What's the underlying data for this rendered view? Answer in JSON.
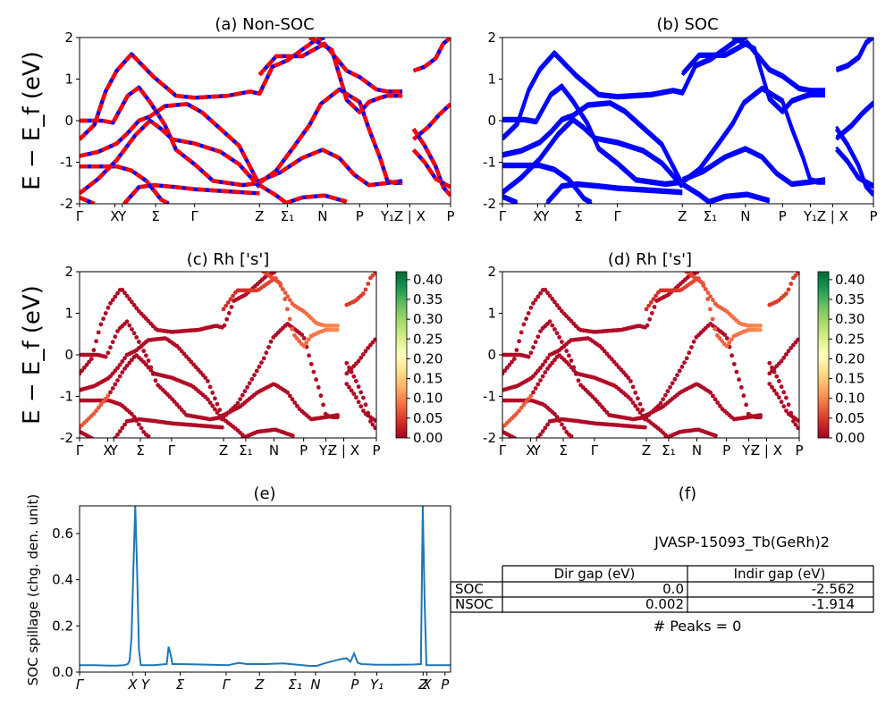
{
  "figure": {
    "ylabel_big": "E − E_f (eV)"
  },
  "chart_data": [
    {
      "id": "a",
      "type": "line",
      "title": "(a) Non-SOC",
      "ylabel": "E − E_f (eV)",
      "ylim": [
        -2,
        2
      ],
      "yticks": [
        -2,
        -1,
        0,
        1,
        2
      ],
      "kpath_ticks": [
        "Γ",
        "X",
        "Y",
        "Σ",
        "Γ",
        "Z",
        "Σ₁",
        "N",
        "P",
        "Y₁",
        "Z | X",
        "P"
      ],
      "kpath_positions": [
        0.0,
        0.095,
        0.115,
        0.205,
        0.31,
        0.485,
        0.56,
        0.655,
        0.755,
        0.83,
        0.89,
        1.0
      ],
      "series_style": "red-blue-dashed",
      "bands": [
        [
          [
            0.0,
            -0.45
          ],
          [
            0.04,
            -0.1
          ],
          [
            0.07,
            0.7
          ],
          [
            0.1,
            1.2
          ],
          [
            0.14,
            1.6
          ],
          [
            0.2,
            1.05
          ],
          [
            0.26,
            0.6
          ],
          [
            0.31,
            0.55
          ],
          [
            0.4,
            0.6
          ],
          [
            0.46,
            0.7
          ],
          [
            0.485,
            0.65
          ],
          [
            0.52,
            1.3
          ],
          [
            0.56,
            1.45
          ],
          [
            0.63,
            1.9
          ],
          [
            0.66,
            2.0
          ]
        ],
        [
          [
            0.0,
            0.0
          ],
          [
            0.06,
            0.0
          ],
          [
            0.09,
            -0.05
          ],
          [
            0.13,
            0.6
          ],
          [
            0.16,
            0.8
          ],
          [
            0.19,
            0.45
          ],
          [
            0.23,
            -0.1
          ],
          [
            0.26,
            -0.7
          ],
          [
            0.31,
            -1.05
          ],
          [
            0.36,
            -1.45
          ],
          [
            0.44,
            -1.55
          ],
          [
            0.485,
            -1.5
          ]
        ],
        [
          [
            0.0,
            -0.85
          ],
          [
            0.05,
            -0.75
          ],
          [
            0.1,
            -0.55
          ],
          [
            0.13,
            -0.3
          ],
          [
            0.16,
            0.0
          ],
          [
            0.19,
            0.1
          ],
          [
            0.23,
            0.35
          ],
          [
            0.29,
            0.4
          ],
          [
            0.33,
            0.2
          ],
          [
            0.38,
            -0.2
          ],
          [
            0.43,
            -0.6
          ],
          [
            0.485,
            -1.55
          ]
        ],
        [
          [
            0.0,
            -1.1
          ],
          [
            0.1,
            -1.1
          ],
          [
            0.14,
            -1.2
          ],
          [
            0.18,
            -1.45
          ],
          [
            0.22,
            -1.9
          ],
          [
            0.24,
            -2.0
          ]
        ],
        [
          [
            0.0,
            -1.75
          ],
          [
            0.05,
            -1.4
          ],
          [
            0.1,
            -0.95
          ],
          [
            0.15,
            -0.35
          ],
          [
            0.19,
            0.0
          ],
          [
            0.22,
            -0.2
          ],
          [
            0.25,
            -0.45
          ],
          [
            0.31,
            -0.55
          ],
          [
            0.38,
            -0.75
          ],
          [
            0.43,
            -1.05
          ],
          [
            0.485,
            -1.6
          ]
        ],
        [
          [
            0.0,
            -1.85
          ],
          [
            0.04,
            -2.0
          ]
        ],
        [
          [
            0.12,
            -2.0
          ],
          [
            0.16,
            -1.6
          ],
          [
            0.2,
            -1.55
          ],
          [
            0.26,
            -1.6
          ],
          [
            0.31,
            -1.65
          ],
          [
            0.4,
            -1.7
          ],
          [
            0.485,
            -1.75
          ]
        ],
        [
          [
            0.485,
            -1.5
          ],
          [
            0.53,
            -1.2
          ],
          [
            0.58,
            -0.6
          ],
          [
            0.62,
            -0.1
          ],
          [
            0.65,
            0.4
          ],
          [
            0.7,
            0.75
          ],
          [
            0.755,
            0.45
          ],
          [
            0.78,
            -0.2
          ],
          [
            0.81,
            -0.9
          ],
          [
            0.83,
            -1.45
          ],
          [
            0.85,
            -1.5
          ],
          [
            0.87,
            -1.5
          ]
        ],
        [
          [
            0.485,
            -1.55
          ],
          [
            0.53,
            -1.8
          ],
          [
            0.56,
            -2.0
          ]
        ],
        [
          [
            0.485,
            -1.45
          ],
          [
            0.54,
            -1.25
          ],
          [
            0.6,
            -0.9
          ],
          [
            0.655,
            -0.7
          ],
          [
            0.7,
            -0.9
          ],
          [
            0.74,
            -1.3
          ],
          [
            0.78,
            -1.55
          ],
          [
            0.83,
            -1.5
          ],
          [
            0.87,
            -1.45
          ]
        ],
        [
          [
            0.485,
            1.1
          ],
          [
            0.53,
            1.55
          ],
          [
            0.6,
            1.55
          ],
          [
            0.66,
            1.85
          ],
          [
            0.72,
            1.2
          ],
          [
            0.755,
            1.05
          ],
          [
            0.8,
            0.75
          ],
          [
            0.83,
            0.7
          ],
          [
            0.87,
            0.7
          ]
        ],
        [
          [
            0.62,
            2.0
          ],
          [
            0.68,
            1.7
          ],
          [
            0.72,
            0.5
          ],
          [
            0.755,
            0.2
          ],
          [
            0.78,
            0.45
          ],
          [
            0.81,
            0.55
          ],
          [
            0.83,
            0.6
          ],
          [
            0.87,
            0.6
          ]
        ],
        [
          [
            0.55,
            -2.0
          ],
          [
            0.6,
            -1.85
          ],
          [
            0.66,
            -1.8
          ],
          [
            0.72,
            -1.95
          ]
        ],
        [
          [
            0.9,
            1.2
          ],
          [
            0.93,
            1.3
          ],
          [
            0.96,
            1.5
          ],
          [
            0.98,
            1.85
          ],
          [
            1.0,
            2.0
          ]
        ],
        [
          [
            0.9,
            -0.45
          ],
          [
            0.94,
            -0.15
          ],
          [
            0.97,
            0.15
          ],
          [
            1.0,
            0.4
          ]
        ],
        [
          [
            0.9,
            -0.2
          ],
          [
            0.93,
            -0.6
          ],
          [
            0.96,
            -1.1
          ],
          [
            0.98,
            -1.6
          ],
          [
            1.0,
            -1.8
          ]
        ],
        [
          [
            0.9,
            -0.7
          ],
          [
            0.93,
            -1.0
          ],
          [
            0.96,
            -1.4
          ],
          [
            1.0,
            -1.6
          ]
        ]
      ]
    },
    {
      "id": "b",
      "type": "line",
      "title": "(b) SOC",
      "ylim": [
        -2,
        2
      ],
      "yticks": [
        -2,
        -1,
        0,
        1,
        2
      ],
      "kpath_ticks": [
        "Γ",
        "X",
        "Y",
        "Σ",
        "Γ",
        "Z",
        "Σ₁",
        "N",
        "P",
        "Y₁",
        "Z | X",
        "P"
      ],
      "kpath_positions": [
        0.0,
        0.095,
        0.115,
        0.205,
        0.31,
        0.485,
        0.56,
        0.655,
        0.755,
        0.83,
        0.89,
        1.0
      ],
      "series_style": "blue"
    },
    {
      "id": "c",
      "type": "scatter",
      "title": "(c)  Rh ['s']",
      "ylabel": "E − E_f (eV)",
      "ylim": [
        -2,
        2
      ],
      "yticks": [
        -2,
        -1,
        0,
        1,
        2
      ],
      "kpath_ticks": [
        "Γ",
        "X",
        "Y",
        "Σ",
        "Γ",
        "Z",
        "Σ₁",
        "N",
        "P",
        "Y₁",
        "Z | X",
        "P"
      ],
      "kpath_positions": [
        0.0,
        0.095,
        0.115,
        0.205,
        0.31,
        0.485,
        0.56,
        0.655,
        0.755,
        0.83,
        0.89,
        1.0
      ],
      "colorbar": {
        "min": 0.0,
        "max": 0.42,
        "ticks": [
          "0.00",
          "0.05",
          "0.10",
          "0.15",
          "0.20",
          "0.25",
          "0.30",
          "0.35",
          "0.40"
        ],
        "cmap": "RdYlGn"
      }
    },
    {
      "id": "d",
      "type": "scatter",
      "title": "(d) Rh ['s']",
      "ylim": [
        -2,
        2
      ],
      "yticks": [
        -2,
        -1,
        0,
        1,
        2
      ],
      "kpath_ticks": [
        "Γ",
        "X",
        "Y",
        "Σ",
        "Γ",
        "Z",
        "Σ₁",
        "N",
        "P",
        "Y₁",
        "Z | X",
        "P"
      ],
      "kpath_positions": [
        0.0,
        0.095,
        0.115,
        0.205,
        0.31,
        0.485,
        0.56,
        0.655,
        0.755,
        0.83,
        0.89,
        1.0
      ],
      "colorbar": {
        "min": 0.0,
        "max": 0.42,
        "ticks": [
          "0.00",
          "0.05",
          "0.10",
          "0.15",
          "0.20",
          "0.25",
          "0.30",
          "0.35",
          "0.40"
        ],
        "cmap": "RdYlGn"
      }
    },
    {
      "id": "e",
      "type": "line",
      "title": "(e)",
      "ylabel": "SOC spillage (chg. den. unit)",
      "ylim": [
        0,
        0.72
      ],
      "yticks": [
        0.0,
        0.2,
        0.4,
        0.6
      ],
      "xlim": [
        0,
        1
      ],
      "kpath_ticks": [
        "Γ",
        "X",
        "Y",
        "Σ",
        "Γ",
        "Z",
        "Σ₁",
        "N",
        "P",
        "Y₁",
        "Z",
        "X",
        "P"
      ],
      "kpath_positions": [
        0.0,
        0.143,
        0.177,
        0.271,
        0.395,
        0.485,
        0.581,
        0.636,
        0.742,
        0.801,
        0.926,
        0.936,
        0.985
      ],
      "x": [
        0.0,
        0.04,
        0.08,
        0.1,
        0.12,
        0.13,
        0.135,
        0.14,
        0.145,
        0.15,
        0.155,
        0.16,
        0.165,
        0.2,
        0.235,
        0.24,
        0.245,
        0.25,
        0.26,
        0.3,
        0.35,
        0.4,
        0.43,
        0.45,
        0.5,
        0.55,
        0.6,
        0.62,
        0.64,
        0.66,
        0.7,
        0.72,
        0.73,
        0.74,
        0.75,
        0.76,
        0.8,
        0.85,
        0.9,
        0.92,
        0.925,
        0.93,
        0.935,
        0.94,
        0.96,
        1.0
      ],
      "y": [
        0.03,
        0.03,
        0.028,
        0.028,
        0.03,
        0.035,
        0.05,
        0.15,
        0.45,
        0.72,
        0.45,
        0.1,
        0.03,
        0.03,
        0.035,
        0.11,
        0.08,
        0.035,
        0.035,
        0.034,
        0.032,
        0.03,
        0.04,
        0.035,
        0.035,
        0.038,
        0.03,
        0.027,
        0.027,
        0.038,
        0.055,
        0.06,
        0.045,
        0.08,
        0.04,
        0.035,
        0.032,
        0.032,
        0.033,
        0.035,
        0.72,
        0.3,
        0.03,
        0.03,
        0.03,
        0.03
      ]
    },
    {
      "id": "f",
      "type": "table",
      "title": "(f)",
      "caption": "JVASP-15093_Tb(GeRh)2",
      "columns": [
        "Dir gap (eV)",
        "Indir gap (eV)"
      ],
      "rows": [
        {
          "label": "SOC",
          "values": [
            "0.0",
            "-2.562"
          ]
        },
        {
          "label": "NSOC",
          "values": [
            "0.002",
            "-1.914"
          ]
        }
      ],
      "footer": "# Peaks = 0"
    }
  ]
}
